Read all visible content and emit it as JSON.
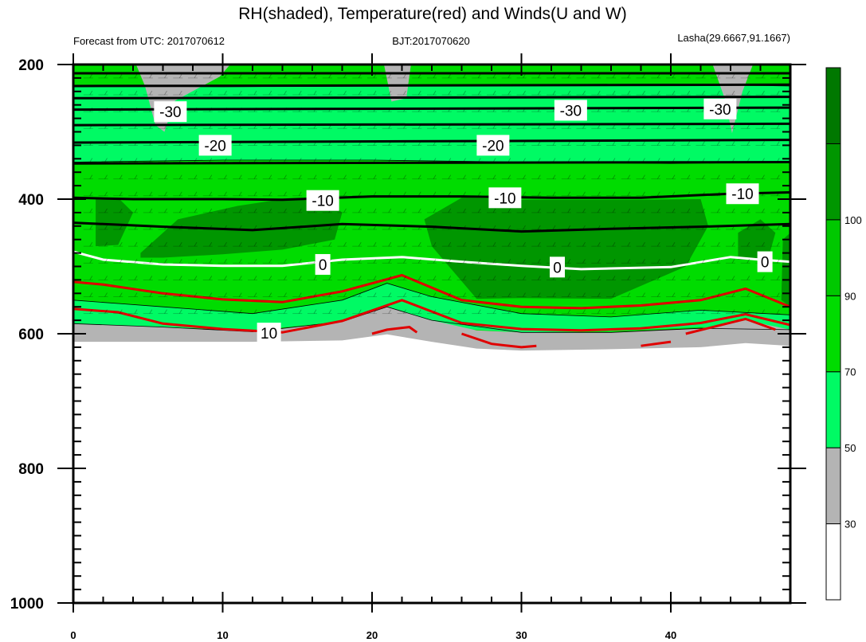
{
  "chart_data": {
    "type": "contour",
    "title": "RH(shaded), Temperature(red) and Winds(U and W)",
    "subtitle_left": "Forecast from UTC: 2017070612",
    "subtitle_center": "BJT:2017070620",
    "subtitle_right": "Lasha(29.6667,91.1667)",
    "x_ticks": [
      "0",
      "10",
      "20",
      "30",
      "40"
    ],
    "x_range": [
      0,
      48
    ],
    "y_ticks": [
      "200",
      "400",
      "600",
      "800",
      "1000"
    ],
    "y_range": [
      200,
      1000
    ],
    "colorbar_labels": [
      "30",
      "50",
      "70",
      "90",
      "100"
    ],
    "colorbar_colors": [
      "#ffffff",
      "#b4b4b4",
      "#00fa64",
      "#00dc00",
      "#00c800",
      "#009600",
      "#007800"
    ],
    "rh_fill_colors": {
      "gray": "#b4b4b4",
      "green1": "#00fa64",
      "green2": "#00dc00",
      "green3": "#00c800",
      "green4": "#009600"
    },
    "temperature_labels": [
      {
        "text": "-30",
        "x": 6.5,
        "y": 270
      },
      {
        "text": "-30",
        "x": 33.3,
        "y": 268
      },
      {
        "text": "-30",
        "x": 43.3,
        "y": 266
      },
      {
        "text": "-20",
        "x": 9.5,
        "y": 320
      },
      {
        "text": "-20",
        "x": 28.1,
        "y": 320
      },
      {
        "text": "-10",
        "x": 16.7,
        "y": 402
      },
      {
        "text": "-10",
        "x": 28.9,
        "y": 398
      },
      {
        "text": "-10",
        "x": 44.8,
        "y": 392
      },
      {
        "text": "0",
        "x": 16.7,
        "y": 497
      },
      {
        "text": "0",
        "x": 32.4,
        "y": 501
      },
      {
        "text": "0",
        "x": 46.3,
        "y": 493
      },
      {
        "text": "10",
        "x": 13.1,
        "y": 599
      }
    ],
    "temperature_lines": {
      "cold": [
        {
          "x": [
            0,
            48
          ],
          "y": [
            213,
            213
          ]
        },
        {
          "x": [
            0,
            48
          ],
          "y": [
            232,
            230
          ]
        },
        {
          "x": [
            0,
            48
          ],
          "y": [
            250,
            248
          ]
        },
        {
          "x": [
            0,
            48
          ],
          "y": [
            267,
            264
          ]
        },
        {
          "x": [
            0,
            48
          ],
          "y": [
            290,
            288
          ]
        },
        {
          "x": [
            0,
            48
          ],
          "y": [
            316,
            312
          ]
        },
        {
          "x": [
            0,
            48
          ],
          "y": [
            347,
            345
          ]
        },
        {
          "x": [
            0,
            4,
            10,
            14,
            20,
            26,
            32,
            38,
            44,
            48
          ],
          "y": [
            398,
            400,
            400,
            401,
            396,
            396,
            398,
            398,
            392,
            390
          ]
        },
        {
          "x": [
            0,
            6,
            12,
            18,
            24,
            30,
            36,
            42,
            48
          ],
          "y": [
            435,
            441,
            446,
            437,
            441,
            448,
            444,
            441,
            437
          ]
        }
      ],
      "zero": {
        "x": [
          0,
          2,
          6,
          10,
          14,
          18,
          22,
          26,
          30,
          34,
          40,
          44,
          46,
          48
        ],
        "y": [
          478,
          490,
          497,
          499,
          499,
          490,
          486,
          493,
          499,
          504,
          501,
          486,
          490,
          493
        ]
      },
      "warm": [
        {
          "x": [
            0,
            2,
            6,
            10,
            14,
            18,
            22,
            26,
            30,
            34,
            38,
            42,
            45,
            48
          ],
          "y": [
            523,
            527,
            540,
            549,
            553,
            537,
            513,
            550,
            560,
            562,
            558,
            550,
            533,
            560
          ]
        },
        {
          "x": [
            0,
            3,
            6,
            10,
            14,
            18,
            22,
            24,
            26,
            30,
            34,
            38,
            42,
            45,
            48
          ],
          "y": [
            563,
            568,
            585,
            593,
            598,
            581,
            550,
            567,
            584,
            593,
            595,
            592,
            584,
            571,
            587
          ]
        },
        {
          "x": [
            20,
            21,
            22.5,
            23
          ],
          "y": [
            600,
            594,
            590,
            598
          ]
        },
        {
          "x": [
            26,
            28,
            30,
            31
          ],
          "y": [
            600,
            615,
            620,
            618
          ]
        },
        {
          "x": [
            38,
            40
          ],
          "y": [
            618,
            612
          ]
        },
        {
          "x": [
            41,
            43,
            45,
            47
          ],
          "y": [
            600,
            589,
            578,
            594
          ]
        }
      ]
    }
  }
}
